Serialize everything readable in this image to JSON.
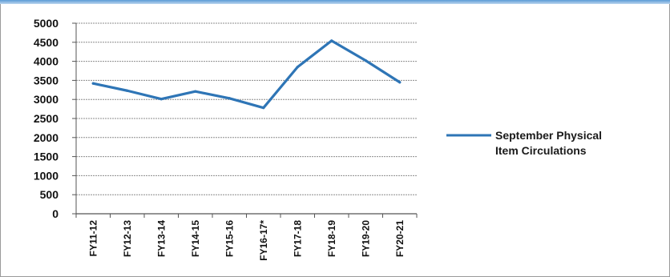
{
  "chart_data": {
    "type": "line",
    "categories": [
      "FY11-12",
      "FY12-13",
      "FY13-14",
      "FY14-15",
      "FY15-16",
      "FY16-17*",
      "FY17-18",
      "FY18-19",
      "FY19-20",
      "FY20-21"
    ],
    "series": [
      {
        "name": "September Physical Item Circulations",
        "legend_lines": [
          "September Physical",
          "Item Circulations"
        ],
        "color": "#2e75b6",
        "values": [
          3420,
          3230,
          3010,
          3210,
          3030,
          2780,
          3850,
          4540,
          4020,
          3450
        ]
      }
    ],
    "ylim": [
      0,
      5000
    ],
    "yticks": [
      0,
      500,
      1000,
      1500,
      2000,
      2500,
      3000,
      3500,
      4000,
      4500,
      5000
    ],
    "grid": true,
    "legend_position": "right"
  }
}
